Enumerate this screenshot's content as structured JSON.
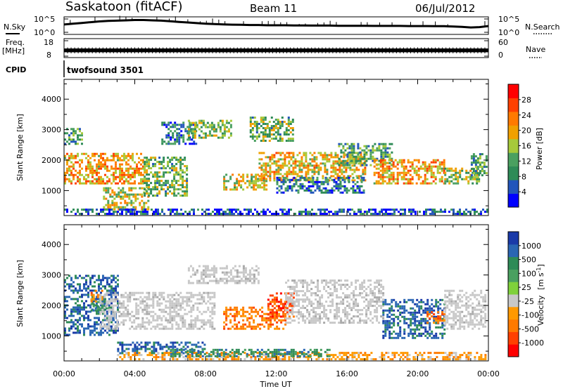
{
  "header": {
    "station": "Saskatoon (fitACF)",
    "beam": "Beam 11",
    "date": "06/Jul/2012"
  },
  "chart_data": [
    {
      "type": "line",
      "name": "noise-panel",
      "left_label": "N.Sky",
      "right_label": "N.Search",
      "left_ticks": [
        "10^5",
        "10^0"
      ],
      "right_ticks": [
        "10^5",
        "10^0"
      ],
      "right_legend_style": "dotted",
      "x": [
        0,
        0.5,
        1,
        1.5,
        2,
        2.5,
        3,
        3.5,
        4,
        4.5,
        5,
        5.5,
        6,
        6.5,
        7,
        7.5,
        8,
        8.5,
        9,
        9.5,
        10,
        10.5,
        11,
        11.5,
        12,
        12.5,
        13,
        13.5,
        14,
        14.5,
        15,
        15.5,
        16,
        16.5,
        17,
        17.5,
        18,
        18.5,
        19,
        19.5,
        20,
        20.5,
        21,
        21.5,
        22,
        22.5,
        23,
        23.5,
        24
      ],
      "sky": [
        0.55,
        0.6,
        0.65,
        0.7,
        0.75,
        0.78,
        0.8,
        0.82,
        0.84,
        0.84,
        0.82,
        0.8,
        0.76,
        0.72,
        0.68,
        0.64,
        0.6,
        0.58,
        0.56,
        0.54,
        0.53,
        0.52,
        0.52,
        0.5,
        0.5,
        0.5,
        0.49,
        0.49,
        0.48,
        0.48,
        0.48,
        0.47,
        0.47,
        0.47,
        0.47,
        0.46,
        0.46,
        0.46,
        0.46,
        0.45,
        0.45,
        0.45,
        0.44,
        0.44,
        0.42,
        0.4,
        0.36,
        0.38,
        0.45
      ]
    },
    {
      "type": "line",
      "name": "freq-panel",
      "left_label": "Freq.",
      "left_unit": "[MHz]",
      "left_ticks": [
        "18",
        "8"
      ],
      "right_label": "Nave",
      "right_ticks": [
        "60",
        "0"
      ],
      "right_legend_style": "dotted",
      "freq_band": [
        10.8,
        12.8
      ],
      "xlim": [
        0,
        24
      ]
    },
    {
      "type": "text",
      "name": "cpid-panel",
      "label": "CPID",
      "program": "twofsound 3501"
    },
    {
      "type": "heatmap",
      "name": "power-panel",
      "ylabel": "Slant Range [km]",
      "yticks": [
        1000,
        2000,
        3000,
        4000
      ],
      "ylim": [
        180,
        4650
      ],
      "xlim": [
        0,
        24
      ],
      "colorbar": {
        "label": "Power [dB]",
        "ticks": [
          "4",
          "8",
          "12",
          "16",
          "20",
          "24",
          "28"
        ],
        "colors": [
          "#0000ff",
          "#2255bb",
          "#2e8b57",
          "#4aa060",
          "#a6c93a",
          "#f0a000",
          "#ff7a00",
          "#ff4000",
          "#ff0000"
        ]
      },
      "regions": [
        {
          "t0": 0.0,
          "t1": 4.5,
          "r0": 1200,
          "r1": 2200,
          "level": 22
        },
        {
          "t0": 0.0,
          "t1": 1.0,
          "r0": 2500,
          "r1": 3000,
          "level": 12
        },
        {
          "t0": 2.2,
          "t1": 4.8,
          "r0": 350,
          "r1": 1100,
          "level": 18
        },
        {
          "t0": 4.5,
          "t1": 7.0,
          "r0": 800,
          "r1": 2100,
          "level": 14
        },
        {
          "t0": 5.5,
          "t1": 7.5,
          "r0": 2500,
          "r1": 3200,
          "level": 8
        },
        {
          "t0": 7.0,
          "t1": 9.5,
          "r0": 2700,
          "r1": 3300,
          "level": 14
        },
        {
          "t0": 9.0,
          "t1": 11.5,
          "r0": 1000,
          "r1": 1500,
          "level": 18
        },
        {
          "t0": 10.5,
          "t1": 13.0,
          "r0": 2600,
          "r1": 3400,
          "level": 14
        },
        {
          "t0": 11.0,
          "t1": 17.0,
          "r0": 1300,
          "r1": 2200,
          "level": 20
        },
        {
          "t0": 12.0,
          "t1": 17.0,
          "r0": 900,
          "r1": 1400,
          "level": 8
        },
        {
          "t0": 15.5,
          "t1": 18.5,
          "r0": 1800,
          "r1": 2500,
          "level": 12
        },
        {
          "t0": 17.5,
          "t1": 21.5,
          "r0": 1200,
          "r1": 2000,
          "level": 22
        },
        {
          "t0": 21.5,
          "t1": 23.5,
          "r0": 1200,
          "r1": 1700,
          "level": 16
        },
        {
          "t0": 23.0,
          "t1": 24.0,
          "r0": 1400,
          "r1": 2200,
          "level": 12
        },
        {
          "t0": 0.0,
          "t1": 24.0,
          "r0": 200,
          "r1": 350,
          "level": 6
        }
      ]
    },
    {
      "type": "heatmap",
      "name": "velocity-panel",
      "ylabel": "Slant Range [km]",
      "yticks": [
        1000,
        2000,
        3000,
        4000
      ],
      "ylim": [
        180,
        4650
      ],
      "xlim": [
        0,
        24
      ],
      "xticks": [
        "00:00",
        "04:00",
        "08:00",
        "12:00",
        "16:00",
        "20:00",
        "00:00"
      ],
      "xlabel": "Time UT",
      "colorbar": {
        "label": "Velocity",
        "unit_prefix": "[m s",
        "unit_exp": "-1",
        "unit_suffix": "]",
        "ticks": [
          "1000",
          "500",
          "100",
          "25",
          "-25",
          "-100",
          "-500",
          "-1000"
        ],
        "colors": [
          "#1a3aa8",
          "#2a66b3",
          "#2e8b57",
          "#4aa060",
          "#7fd13b",
          "#c8c8c8",
          "#ff9900",
          "#ff7a00",
          "#ff4000",
          "#ff0000"
        ]
      },
      "regions": [
        {
          "t0": 0.0,
          "t1": 3.0,
          "r0": 1000,
          "r1": 3000,
          "level": 500
        },
        {
          "t0": 1.5,
          "t1": 2.5,
          "r0": 1800,
          "r1": 2200,
          "level": 100
        },
        {
          "t0": 1.5,
          "t1": 2.2,
          "r0": 2100,
          "r1": 2500,
          "level": -500
        },
        {
          "t0": 3.0,
          "t1": 8.0,
          "r0": 400,
          "r1": 800,
          "level": 500
        },
        {
          "t0": 2.0,
          "t1": 8.5,
          "r0": 1200,
          "r1": 2400,
          "level": 0
        },
        {
          "t0": 7.0,
          "t1": 11.0,
          "r0": 2700,
          "r1": 3300,
          "level": 0
        },
        {
          "t0": 9.0,
          "t1": 12.5,
          "r0": 1200,
          "r1": 1900,
          "level": -500
        },
        {
          "t0": 11.5,
          "t1": 13.0,
          "r0": 1600,
          "r1": 2400,
          "level": -1000
        },
        {
          "t0": 12.5,
          "t1": 18.0,
          "r0": 1400,
          "r1": 2800,
          "level": 0
        },
        {
          "t0": 18.0,
          "t1": 21.5,
          "r0": 900,
          "r1": 2200,
          "level": 500
        },
        {
          "t0": 20.5,
          "t1": 21.5,
          "r0": 1400,
          "r1": 1800,
          "level": -500
        },
        {
          "t0": 21.5,
          "t1": 24.0,
          "r0": 1200,
          "r1": 2500,
          "level": 0
        },
        {
          "t0": 3.0,
          "t1": 24.0,
          "r0": 200,
          "r1": 420,
          "level": -100
        },
        {
          "t0": 6.0,
          "t1": 15.0,
          "r0": 300,
          "r1": 550,
          "level": 100
        }
      ]
    }
  ]
}
